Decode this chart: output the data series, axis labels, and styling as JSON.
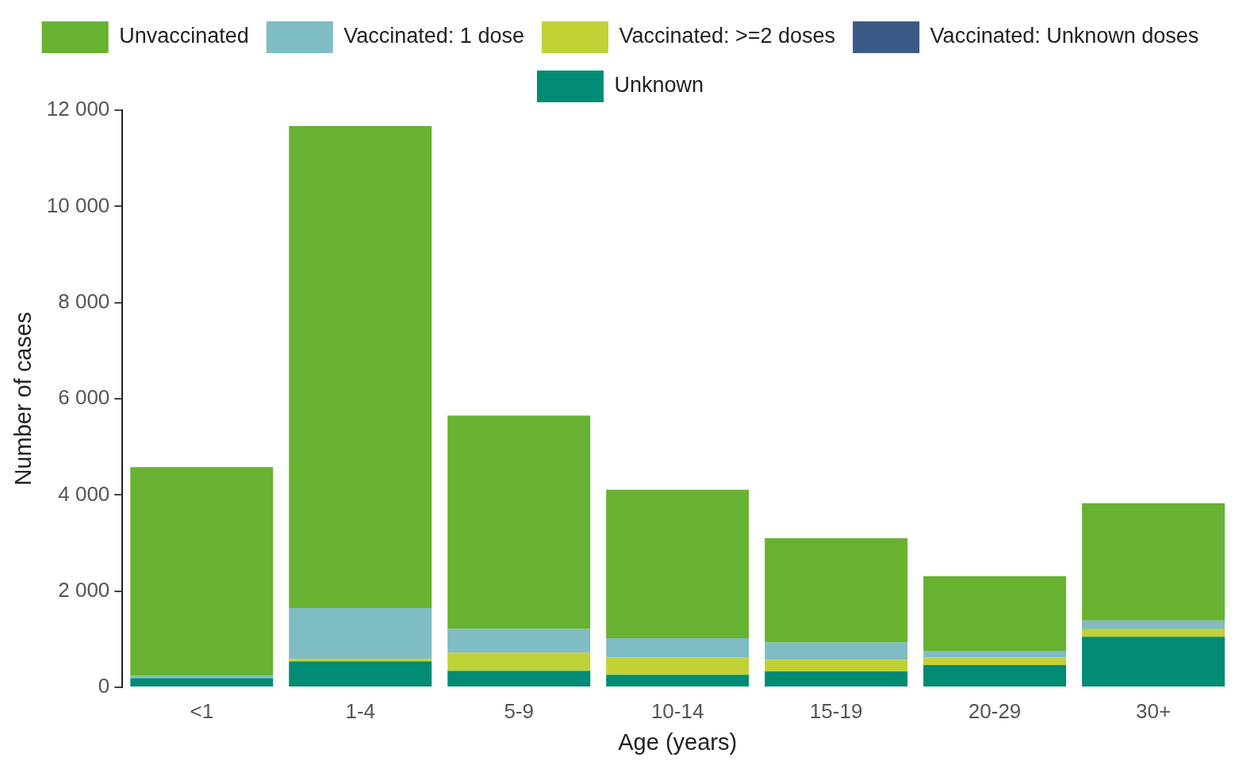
{
  "chart_data": {
    "type": "bar",
    "stacked": true,
    "xlabel": "Age (years)",
    "ylabel": "Number of cases",
    "categories": [
      "<1",
      "1-4",
      "5-9",
      "10-14",
      "15-19",
      "20-29",
      "30+"
    ],
    "series": [
      {
        "name": "Unknown",
        "color": "#008b74",
        "values": [
          190,
          540,
          340,
          260,
          330,
          460,
          1050
        ]
      },
      {
        "name": "Vaccinated: Unknown doses",
        "color": "#3b5a85",
        "values": [
          0,
          0,
          0,
          0,
          0,
          0,
          0
        ]
      },
      {
        "name": "Vaccinated: >=2 doses",
        "color": "#c0d136",
        "values": [
          0,
          50,
          380,
          360,
          240,
          160,
          170
        ]
      },
      {
        "name": "Vaccinated: 1 dose",
        "color": "#7fbcc3",
        "values": [
          50,
          1060,
          490,
          400,
          360,
          140,
          170
        ]
      },
      {
        "name": "Unvaccinated",
        "color": "#67b231",
        "values": [
          4340,
          10020,
          4440,
          3090,
          2170,
          1550,
          2440
        ]
      }
    ],
    "ylim": [
      0,
      12000
    ],
    "yticks": [
      {
        "value": 0,
        "label": "0"
      },
      {
        "value": 2000,
        "label": "2 000"
      },
      {
        "value": 4000,
        "label": "4 000"
      },
      {
        "value": 6000,
        "label": "6 000"
      },
      {
        "value": 8000,
        "label": "8 000"
      },
      {
        "value": 10000,
        "label": "10 000"
      },
      {
        "value": 12000,
        "label": "12 000"
      }
    ],
    "grid": false,
    "legend": "top"
  }
}
